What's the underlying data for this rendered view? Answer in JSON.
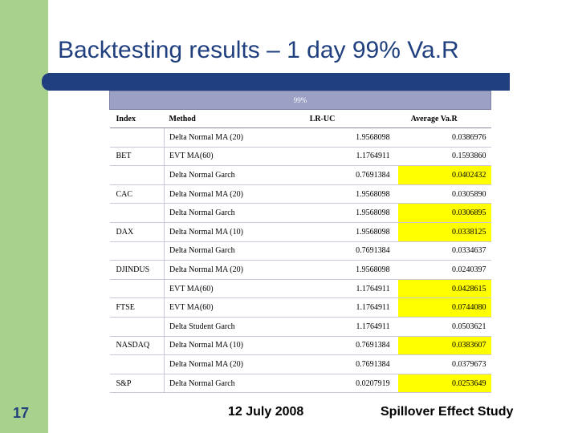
{
  "slide": {
    "title": "Backtesting results – 1 day 99% Va.R",
    "slide_number": "17",
    "date": "12 July 2008",
    "study": "Spillover Effect Study",
    "colors": {
      "left_bar": "#a9d18e",
      "title_rule": "#1f3f7f",
      "header_band": "#9ca0c4",
      "highlight": "#ffff00"
    }
  },
  "table": {
    "group_header": "99%",
    "columns": [
      "Index",
      "Method",
      "LR-UC",
      "Average Va.R"
    ],
    "rows": [
      {
        "index": "",
        "method": "Delta Normal MA (20)",
        "lr": "1.9568098",
        "avg": "0.0386976",
        "highlight": false
      },
      {
        "index": "BET",
        "method": "EVT MA(60)",
        "lr": "1.1764911",
        "avg": "0.1593860",
        "highlight": false
      },
      {
        "index": "",
        "method": "Delta Normal Garch",
        "lr": "0.7691384",
        "avg": "0.0402432",
        "highlight": true
      },
      {
        "index": "CAC",
        "method": "Delta Normal MA (20)",
        "lr": "1.9568098",
        "avg": "0.0305890",
        "highlight": false
      },
      {
        "index": "",
        "method": "Delta Normal Garch",
        "lr": "1.9568098",
        "avg": "0.0306895",
        "highlight": true
      },
      {
        "index": "DAX",
        "method": "Delta Normal MA (10)",
        "lr": "1.9568098",
        "avg": "0.0338125",
        "highlight": true
      },
      {
        "index": "",
        "method": "Delta Normal Garch",
        "lr": "0.7691384",
        "avg": "0.0334637",
        "highlight": false
      },
      {
        "index": "DJINDUS",
        "method": "Delta Normal MA (20)",
        "lr": "1.9568098",
        "avg": "0.0240397",
        "highlight": false
      },
      {
        "index": "",
        "method": "EVT MA(60)",
        "lr": "1.1764911",
        "avg": "0.0428615",
        "highlight": true
      },
      {
        "index": "FTSE",
        "method": "EVT MA(60)",
        "lr": "1.1764911",
        "avg": "0.0744080",
        "highlight": true
      },
      {
        "index": "",
        "method": "Delta Student Garch",
        "lr": "1.1764911",
        "avg": "0.0503621",
        "highlight": false
      },
      {
        "index": "NASDAQ",
        "method": "Delta Normal MA (10)",
        "lr": "0.7691384",
        "avg": "0.0383607",
        "highlight": true
      },
      {
        "index": "",
        "method": "Delta Normal MA (20)",
        "lr": "0.7691384",
        "avg": "0.0379673",
        "highlight": false
      },
      {
        "index": "S&P",
        "method": "Delta Normal Garch",
        "lr": "0.0207919",
        "avg": "0.0253649",
        "highlight": true
      }
    ]
  }
}
